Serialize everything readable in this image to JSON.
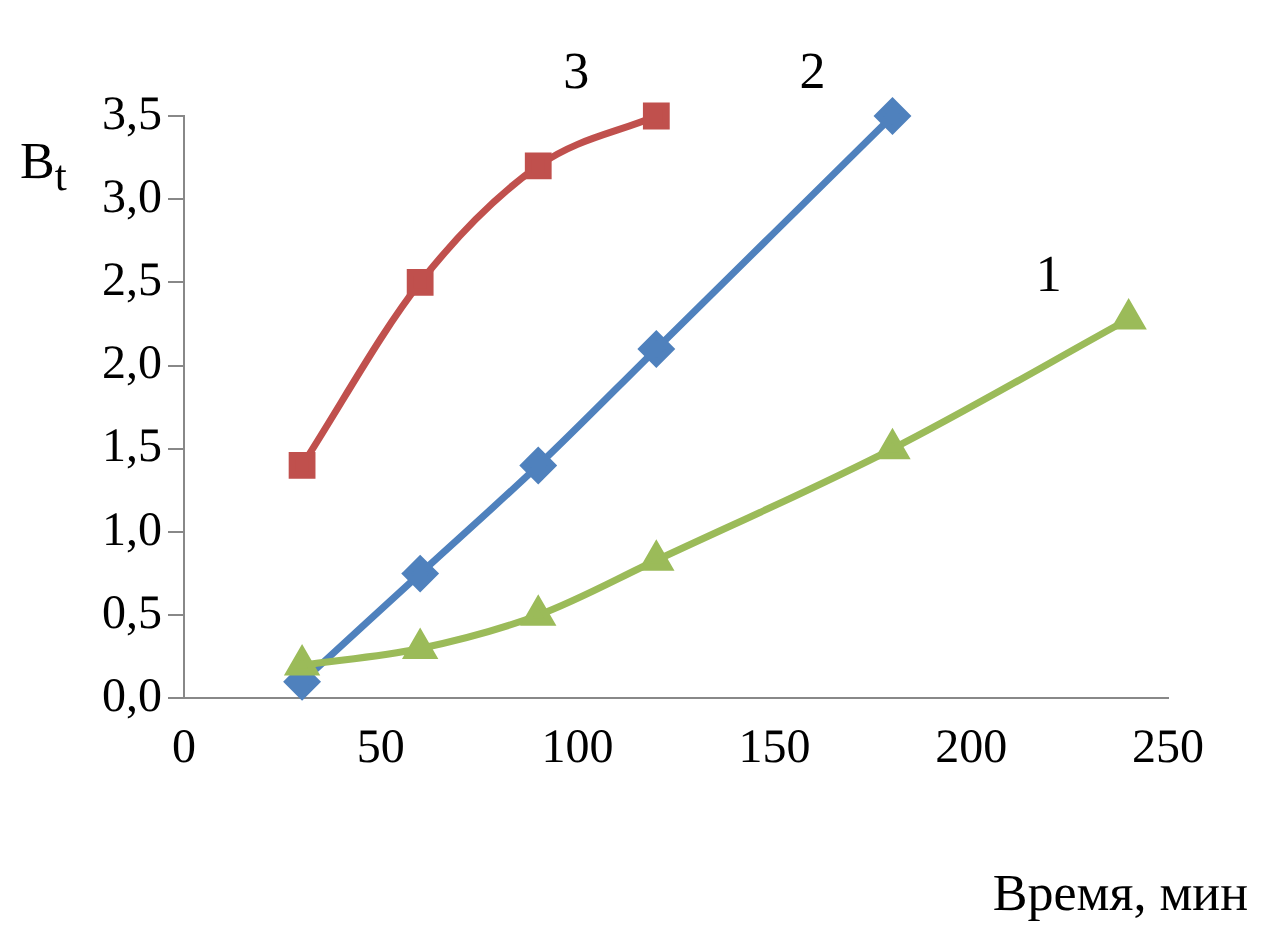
{
  "chart_data": {
    "type": "line",
    "xlabel": "Время, мин",
    "ylabel": "B$_{t}$",
    "xlim": [
      0,
      250
    ],
    "xticks": [
      0,
      50,
      100,
      150,
      200,
      250
    ],
    "ylim": [
      0,
      3.5
    ],
    "yticks": [
      {
        "value": 0,
        "label": "0,0"
      },
      {
        "value": 0.5,
        "label": "0,5"
      },
      {
        "value": 1,
        "label": "1,0"
      },
      {
        "value": 1.5,
        "label": "1,5"
      },
      {
        "value": 2,
        "label": "2,0"
      },
      {
        "value": 2.5,
        "label": "2,5"
      },
      {
        "value": 3,
        "label": "3,0"
      },
      {
        "value": 3.5,
        "label": "3,5"
      }
    ],
    "grid": false,
    "legend": false,
    "series": [
      {
        "name": "1",
        "color": "#9bbb59",
        "marker": "triangle",
        "x": [
          30,
          60,
          90,
          120,
          180,
          240
        ],
        "values": [
          0.2,
          0.3,
          0.5,
          0.83,
          1.5,
          2.28
        ]
      },
      {
        "name": "2",
        "color": "#4f81bd",
        "marker": "diamond",
        "x": [
          30,
          60,
          90,
          120,
          180
        ],
        "values": [
          0.1,
          0.75,
          1.4,
          2.1,
          3.5
        ]
      },
      {
        "name": "3",
        "color": "#c0504d",
        "marker": "square",
        "x": [
          30,
          60,
          90,
          120
        ],
        "values": [
          1.4,
          2.5,
          3.2,
          3.5
        ]
      }
    ]
  }
}
